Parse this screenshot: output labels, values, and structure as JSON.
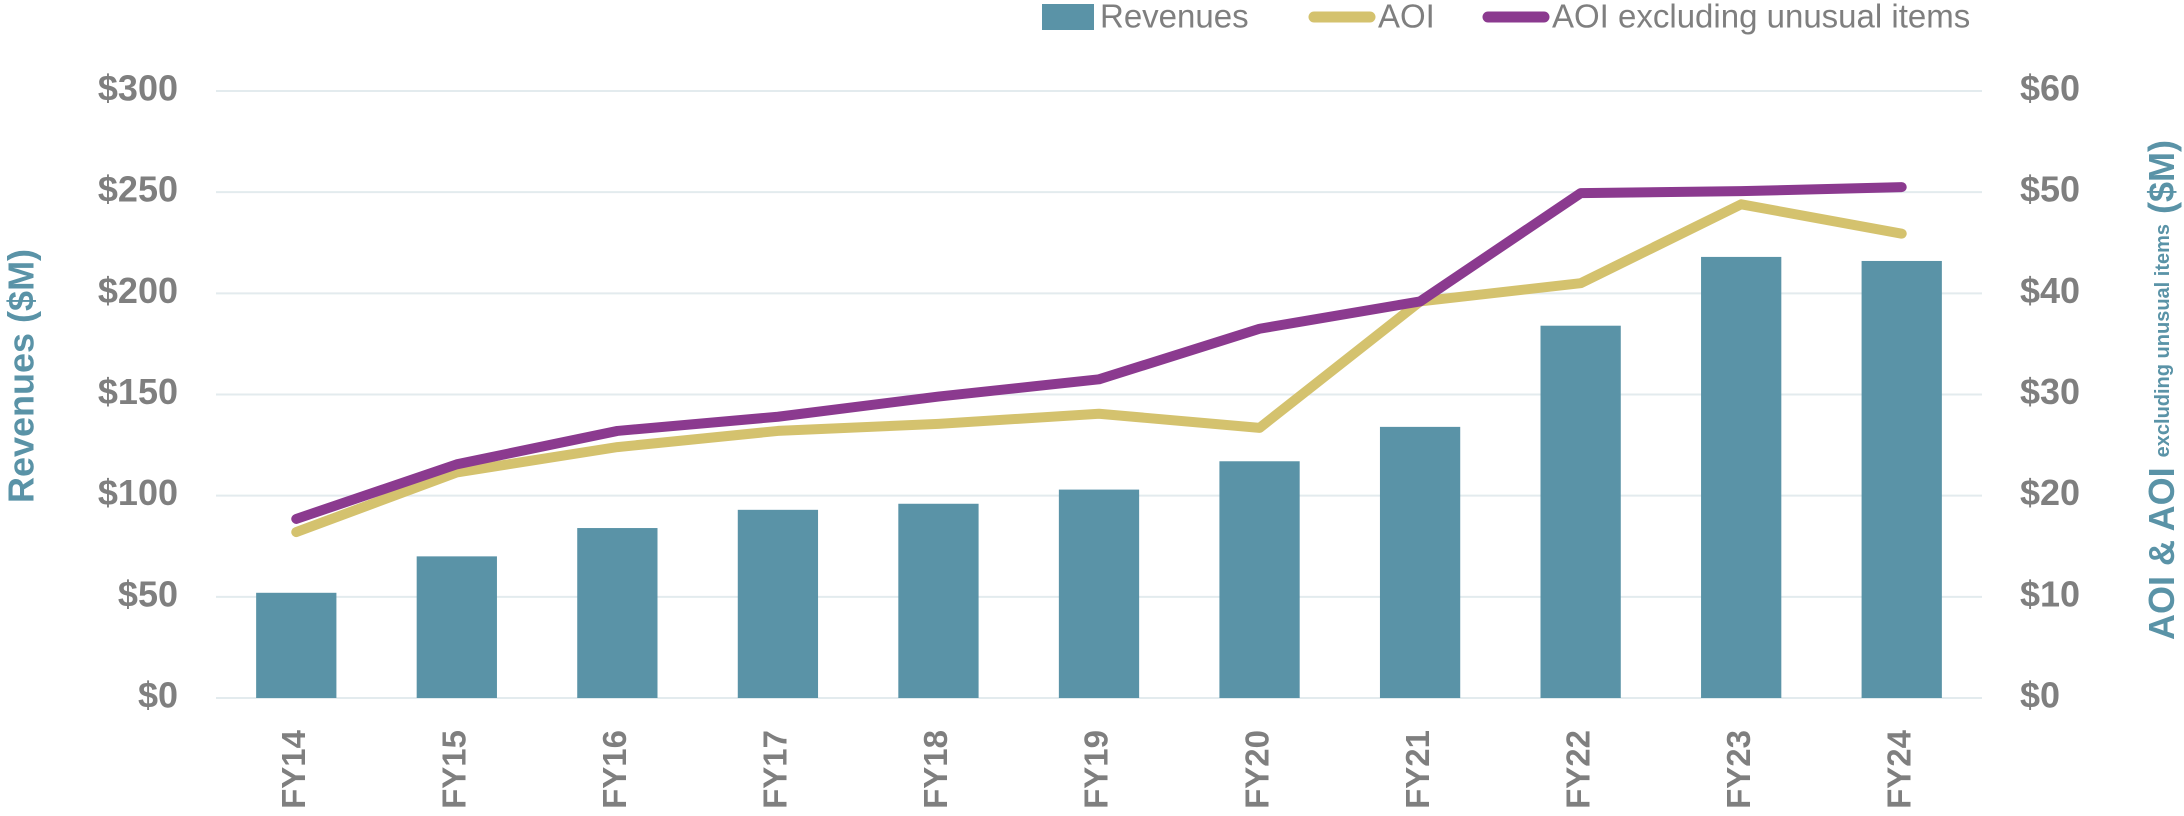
{
  "chart_data": {
    "type": "bar",
    "categories": [
      "FY14",
      "FY15",
      "FY16",
      "FY17",
      "FY18",
      "FY19",
      "FY20",
      "FY21",
      "FY22",
      "FY23",
      "FY24"
    ],
    "series": [
      {
        "name": "Revenues",
        "type": "bar",
        "color": "#5a93a7",
        "axis": "y",
        "values": [
          52,
          70,
          84,
          93,
          96,
          103,
          117,
          134,
          184,
          218,
          216
        ]
      },
      {
        "name": "AOI",
        "type": "line",
        "color": "#d4c26e",
        "axis": "y2",
        "values": [
          16.4,
          22.3,
          24.8,
          26.4,
          27.1,
          28.1,
          26.7,
          39.2,
          41.0,
          48.8,
          45.9
        ]
      },
      {
        "name": "AOI excluding unusual items",
        "type": "line",
        "color": "#8b3a8f",
        "axis": "y2",
        "values": [
          17.7,
          23.1,
          26.4,
          27.8,
          29.8,
          31.5,
          36.5,
          39.2,
          49.9,
          50.1,
          50.5
        ]
      }
    ],
    "y_label": "Revenues ($M)",
    "y2_label": [
      "AOI & AOI",
      "excluding unusual items",
      "($M)"
    ],
    "ylim": [
      0,
      300
    ],
    "yticks": [
      {
        "value": 0,
        "label": "$0"
      },
      {
        "value": 50,
        "label": "$50"
      },
      {
        "value": 100,
        "label": "$100"
      },
      {
        "value": 150,
        "label": "$150"
      },
      {
        "value": 200,
        "label": "$200"
      },
      {
        "value": 250,
        "label": "$250"
      },
      {
        "value": 300,
        "label": "$300"
      }
    ],
    "y2lim": [
      0,
      60
    ],
    "y2ticks": [
      {
        "value": 0,
        "label": "$0"
      },
      {
        "value": 10,
        "label": "$10"
      },
      {
        "value": 20,
        "label": "$20"
      },
      {
        "value": 30,
        "label": "$30"
      },
      {
        "value": 40,
        "label": "$40"
      },
      {
        "value": 50,
        "label": "$50"
      },
      {
        "value": 60,
        "label": "$60"
      }
    ],
    "grid": true,
    "legend": "top"
  }
}
